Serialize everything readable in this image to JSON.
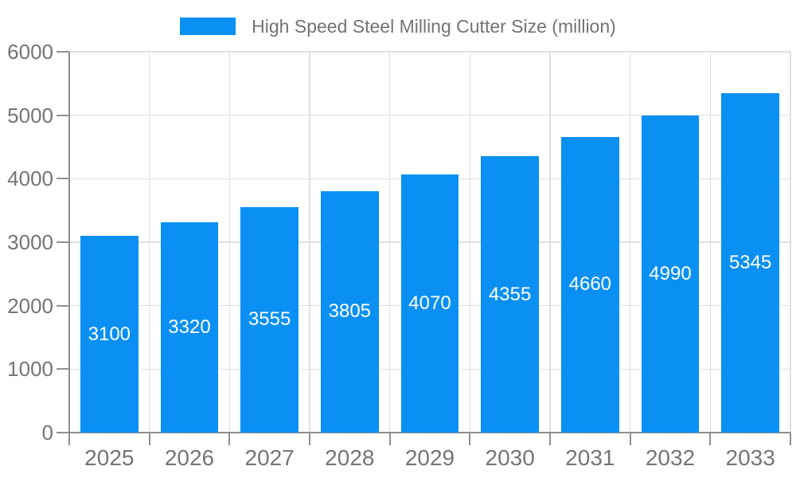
{
  "legend": {
    "label": "High Speed Steel Milling Cutter Size (million)",
    "swatch_color": "#0a90f2"
  },
  "chart_data": {
    "type": "bar",
    "title": "High Speed Steel Milling Cutter Size (million)",
    "categories": [
      "2025",
      "2026",
      "2027",
      "2028",
      "2029",
      "2030",
      "2031",
      "2032",
      "2033"
    ],
    "series": [
      {
        "name": "High Speed Steel Milling Cutter Size (million)",
        "values": [
          3100,
          3320,
          3555,
          3805,
          4070,
          4355,
          4660,
          4990,
          5345
        ]
      }
    ],
    "xlabel": "",
    "ylabel": "",
    "ylim": [
      0,
      6000
    ],
    "yticks": [
      0,
      1000,
      2000,
      3000,
      4000,
      5000,
      6000
    ],
    "grid": true,
    "legend_position": "top",
    "value_labels": "inside-middle",
    "colors": {
      "bar": "#0a90f2",
      "bar_label_text": "#ffffff",
      "axis_text": "#757575",
      "legend_text": "#737373",
      "gridline": "#e0e0e0",
      "axis_line": "#8f8f8f",
      "background": "#ffffff"
    }
  }
}
